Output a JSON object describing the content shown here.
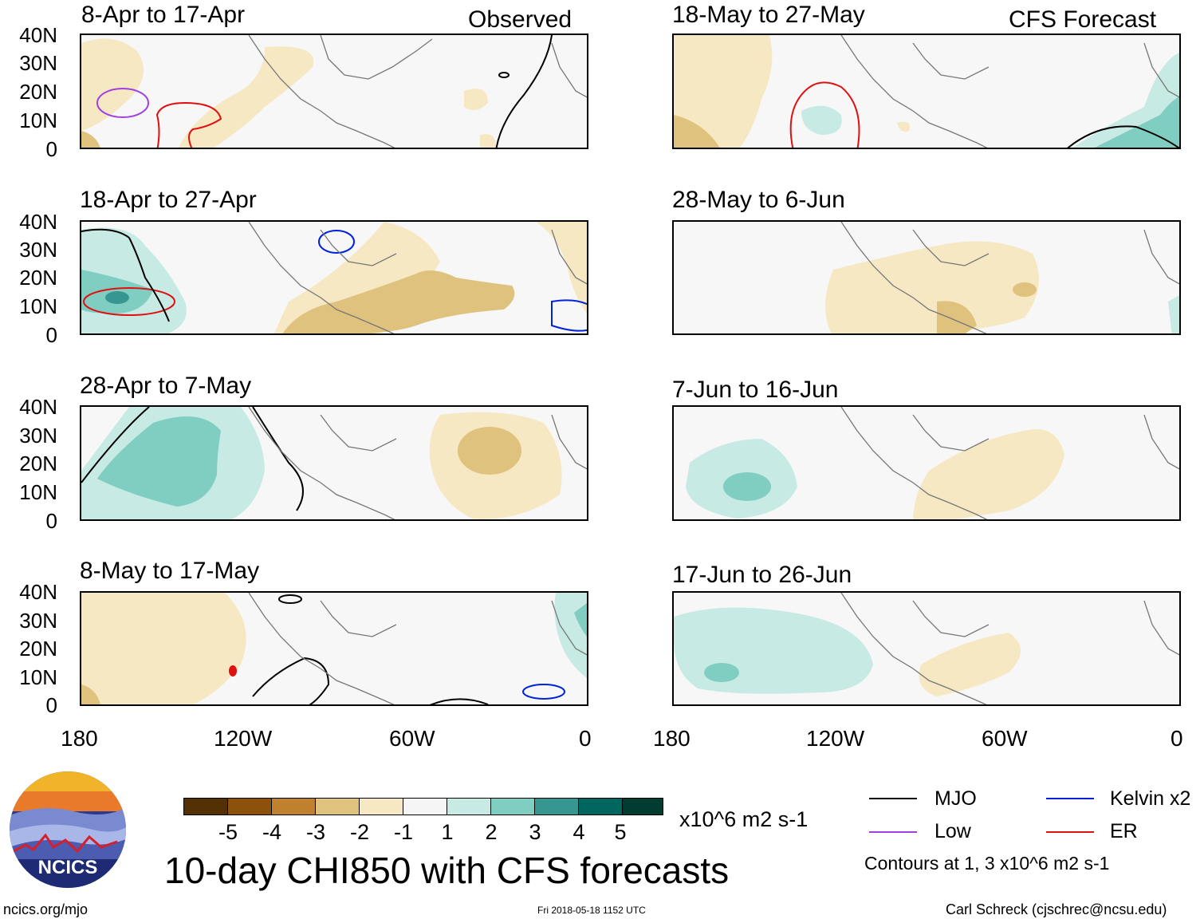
{
  "headers": {
    "observed": "Observed",
    "forecast": "CFS Forecast"
  },
  "panels": {
    "observed": [
      "8-Apr to 17-Apr",
      "18-Apr to 27-Apr",
      "28-Apr to 7-May",
      "8-May to 17-May"
    ],
    "forecast": [
      "18-May to 27-May",
      "28-May to 6-Jun",
      "7-Jun to 16-Jun",
      "17-Jun to 26-Jun"
    ]
  },
  "y_ticks": [
    "40N",
    "30N",
    "20N",
    "10N",
    "0"
  ],
  "x_ticks": [
    "180",
    "120W",
    "60W",
    "0"
  ],
  "colorbar": {
    "colors": [
      "#543005",
      "#8c510a",
      "#bf812d",
      "#dfc27d",
      "#f6e8c3",
      "#f5f5f5",
      "#c7eae5",
      "#80cdc1",
      "#35978f",
      "#01665e",
      "#003c30"
    ],
    "ticks": [
      "-5",
      "-4",
      "-3",
      "-2",
      "-1",
      "1",
      "2",
      "3",
      "4",
      "5"
    ],
    "units": "x10^6 m2 s-1"
  },
  "legend": {
    "items": [
      {
        "label": "MJO",
        "color": "#000000"
      },
      {
        "label": "Kelvin x2",
        "color": "#0022dd"
      },
      {
        "label": "Low",
        "color": "#a040e0"
      },
      {
        "label": "ER",
        "color": "#e01010"
      }
    ],
    "note": "Contours at 1, 3 x10^6 m2 s-1"
  },
  "main_title": "10-day CHI850 with CFS forecasts",
  "logo_text": "NCICS",
  "footer": {
    "left": "ncics.org/mjo",
    "center": "Fri 2018-05-18 1152 UTC",
    "right": "Carl Schreck (cjschrec@ncsu.edu)"
  }
}
